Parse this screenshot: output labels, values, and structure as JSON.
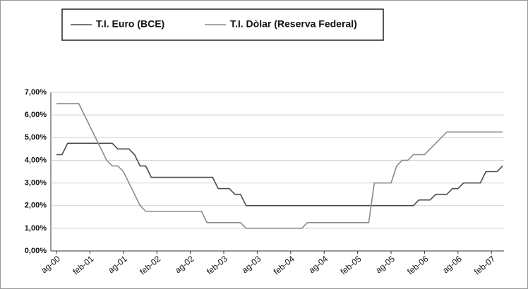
{
  "chart_data": {
    "type": "line",
    "categories": [
      "ag-00",
      null,
      null,
      null,
      null,
      null,
      "feb-01",
      null,
      null,
      null,
      null,
      null,
      "ag-01",
      null,
      null,
      null,
      null,
      null,
      "feb-02",
      null,
      null,
      null,
      null,
      null,
      "ag-02",
      null,
      null,
      null,
      null,
      null,
      "feb-03",
      null,
      null,
      null,
      null,
      null,
      "ag-03",
      null,
      null,
      null,
      null,
      null,
      "feb-04",
      null,
      null,
      null,
      null,
      null,
      "ag-04",
      null,
      null,
      null,
      null,
      null,
      "feb-05",
      null,
      null,
      null,
      null,
      null,
      "ag-05",
      null,
      null,
      null,
      null,
      null,
      "feb-06",
      null,
      null,
      null,
      null,
      null,
      "ag-06",
      null,
      null,
      null,
      null,
      null,
      "feb-07",
      null,
      null
    ],
    "series": [
      {
        "name": "T.I. Euro (BCE)",
        "color": "#4a4a4a",
        "values": [
          4.25,
          4.25,
          4.75,
          4.75,
          4.75,
          4.75,
          4.75,
          4.75,
          4.75,
          4.75,
          4.75,
          4.5,
          4.5,
          4.5,
          4.25,
          3.75,
          3.75,
          3.25,
          3.25,
          3.25,
          3.25,
          3.25,
          3.25,
          3.25,
          3.25,
          3.25,
          3.25,
          3.25,
          3.25,
          2.75,
          2.75,
          2.75,
          2.5,
          2.5,
          2,
          2,
          2,
          2,
          2,
          2,
          2,
          2,
          2,
          2,
          2,
          2,
          2,
          2,
          2,
          2,
          2,
          2,
          2,
          2,
          2,
          2,
          2,
          2,
          2,
          2,
          2,
          2,
          2,
          2,
          2,
          2.25,
          2.25,
          2.25,
          2.5,
          2.5,
          2.5,
          2.75,
          2.75,
          3,
          3,
          3,
          3,
          3.5,
          3.5,
          3.5,
          3.75
        ]
      },
      {
        "name": "T.I. Dòlar (Reserva Federal)",
        "color": "#8a8a8a",
        "values": [
          6.5,
          6.5,
          6.5,
          6.5,
          6.5,
          6,
          5.5,
          5,
          4.5,
          4,
          3.75,
          3.75,
          3.5,
          3,
          2.5,
          2,
          1.75,
          1.75,
          1.75,
          1.75,
          1.75,
          1.75,
          1.75,
          1.75,
          1.75,
          1.75,
          1.75,
          1.25,
          1.25,
          1.25,
          1.25,
          1.25,
          1.25,
          1.25,
          1,
          1,
          1,
          1,
          1,
          1,
          1,
          1,
          1,
          1,
          1,
          1.25,
          1.25,
          1.25,
          1.25,
          1.25,
          1.25,
          1.25,
          1.25,
          1.25,
          1.25,
          1.25,
          1.25,
          3,
          3,
          3,
          3,
          3.75,
          4,
          4,
          4.25,
          4.25,
          4.25,
          4.5,
          4.75,
          5,
          5.25,
          5.25,
          5.25,
          5.25,
          5.25,
          5.25,
          5.25,
          5.25,
          5.25,
          5.25,
          5.25
        ]
      }
    ],
    "ylim": [
      0,
      7
    ],
    "yticks": [
      {
        "value": 0,
        "label": "0,00%"
      },
      {
        "value": 1,
        "label": "1,00%"
      },
      {
        "value": 2,
        "label": "2,00%"
      },
      {
        "value": 3,
        "label": "3,00%"
      },
      {
        "value": 4,
        "label": "4,00%"
      },
      {
        "value": 5,
        "label": "5,00%"
      },
      {
        "value": 6,
        "label": "6,00%"
      },
      {
        "value": 7,
        "label": "7,00%"
      }
    ],
    "grid": true
  }
}
